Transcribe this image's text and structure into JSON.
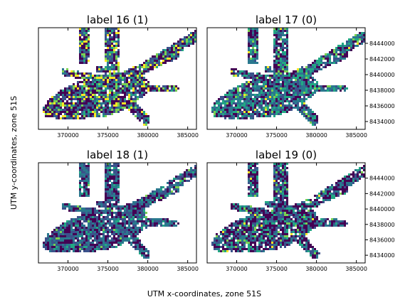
{
  "figure": {
    "xlabel": "UTM x-coordinates, zone 51S",
    "ylabel": "UTM y-coordinates, zone 51S"
  },
  "chart_data": [
    {
      "type": "heatmap",
      "title": "label 16 (1)",
      "xlabel": "",
      "ylabel": "",
      "xlim": [
        366300,
        386100
      ],
      "ylim": [
        8433000,
        8446000
      ],
      "xticks": [
        "370000",
        "375000",
        "380000",
        "385000"
      ],
      "yticks": [],
      "colormap": "viridis",
      "grid": false,
      "palette": [
        "#440154",
        "#3b528b",
        "#2a788e",
        "#22a884",
        "#7ad151",
        "#fde725"
      ],
      "weights": [
        0.33,
        0.22,
        0.14,
        0.1,
        0.11,
        0.1
      ]
    },
    {
      "type": "heatmap",
      "title": "label 17 (0)",
      "xlabel": "",
      "ylabel": "",
      "xlim": [
        366300,
        386100
      ],
      "ylim": [
        8433000,
        8446000
      ],
      "xticks": [
        "370000",
        "375000",
        "380000",
        "385000"
      ],
      "yticks": [
        "8434000",
        "8436000",
        "8438000",
        "8440000",
        "8442000",
        "8444000"
      ],
      "colormap": "viridis",
      "grid": false,
      "palette": [
        "#440154",
        "#3b528b",
        "#2a788e",
        "#22a884",
        "#7ad151",
        "#fde725"
      ],
      "weights": [
        0.25,
        0.2,
        0.3,
        0.18,
        0.05,
        0.02
      ]
    },
    {
      "type": "heatmap",
      "title": "label 18 (1)",
      "xlabel": "",
      "ylabel": "",
      "xlim": [
        366300,
        386100
      ],
      "ylim": [
        8433000,
        8446000
      ],
      "xticks": [
        "370000",
        "375000",
        "380000",
        "385000"
      ],
      "yticks": [],
      "colormap": "viridis",
      "grid": false,
      "palette": [
        "#440154",
        "#3b528b",
        "#2a788e",
        "#22a884",
        "#7ad151",
        "#fde725"
      ],
      "weights": [
        0.3,
        0.3,
        0.3,
        0.08,
        0.02,
        0.0
      ]
    },
    {
      "type": "heatmap",
      "title": "label 19 (0)",
      "xlabel": "",
      "ylabel": "",
      "xlim": [
        366300,
        386100
      ],
      "ylim": [
        8433000,
        8446000
      ],
      "xticks": [
        "370000",
        "375000",
        "380000",
        "385000"
      ],
      "yticks": [
        "8434000",
        "8436000",
        "8438000",
        "8440000",
        "8442000",
        "8444000"
      ],
      "colormap": "viridis",
      "grid": false,
      "palette": [
        "#440154",
        "#3b528b",
        "#2a788e",
        "#22a884",
        "#7ad151",
        "#fde725"
      ],
      "weights": [
        0.4,
        0.22,
        0.2,
        0.12,
        0.05,
        0.01
      ]
    }
  ]
}
